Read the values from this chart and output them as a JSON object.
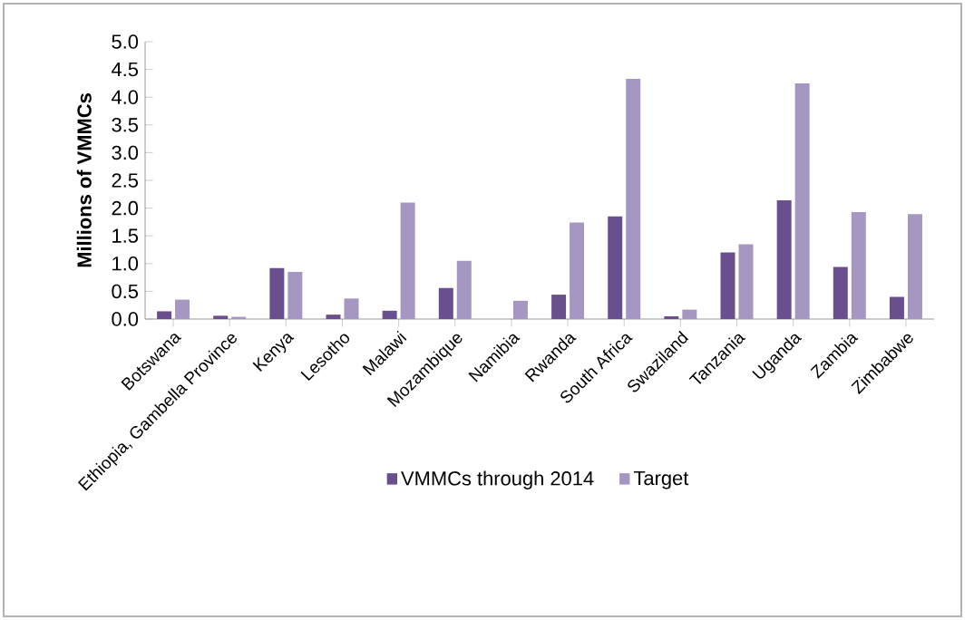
{
  "chart_data": {
    "type": "bar",
    "ylabel": "Millions of VMMCs",
    "categories": [
      "Botswana",
      "Ethiopia, Gambella Province",
      "Kenya",
      "Lesotho",
      "Malawi",
      "Mozambique",
      "Namibia",
      "Rwanda",
      "South Africa",
      "Swaziland",
      "Tanzania",
      "Uganda",
      "Zambia",
      "Zimbabwe"
    ],
    "series": [
      {
        "name": "VMMCs through 2014",
        "color": "#6a4f8f",
        "values": [
          0.14,
          0.06,
          0.92,
          0.08,
          0.15,
          0.56,
          0,
          0.44,
          1.85,
          0.05,
          1.2,
          2.14,
          0.94,
          0.4
        ]
      },
      {
        "name": "Target",
        "color": "#a597c1",
        "values": [
          0.35,
          0.04,
          0.85,
          0.37,
          2.1,
          1.05,
          0.33,
          1.74,
          4.33,
          0.17,
          1.35,
          4.25,
          1.93,
          1.89
        ]
      }
    ],
    "ylim": [
      0,
      5
    ],
    "yticks": [
      {
        "value": 0,
        "label": "0.0"
      },
      {
        "value": 0.5,
        "label": "0.5"
      },
      {
        "value": 1,
        "label": "1.0"
      },
      {
        "value": 1.5,
        "label": "1.5"
      },
      {
        "value": 2,
        "label": "2.0"
      },
      {
        "value": 2.5,
        "label": "2.5"
      },
      {
        "value": 3,
        "label": "3.0"
      },
      {
        "value": 3.5,
        "label": "3.5"
      },
      {
        "value": 4,
        "label": "4.0"
      },
      {
        "value": 4.5,
        "label": "4.5"
      },
      {
        "value": 5,
        "label": "5.0"
      }
    ],
    "grid": false,
    "legend": "bottom"
  }
}
